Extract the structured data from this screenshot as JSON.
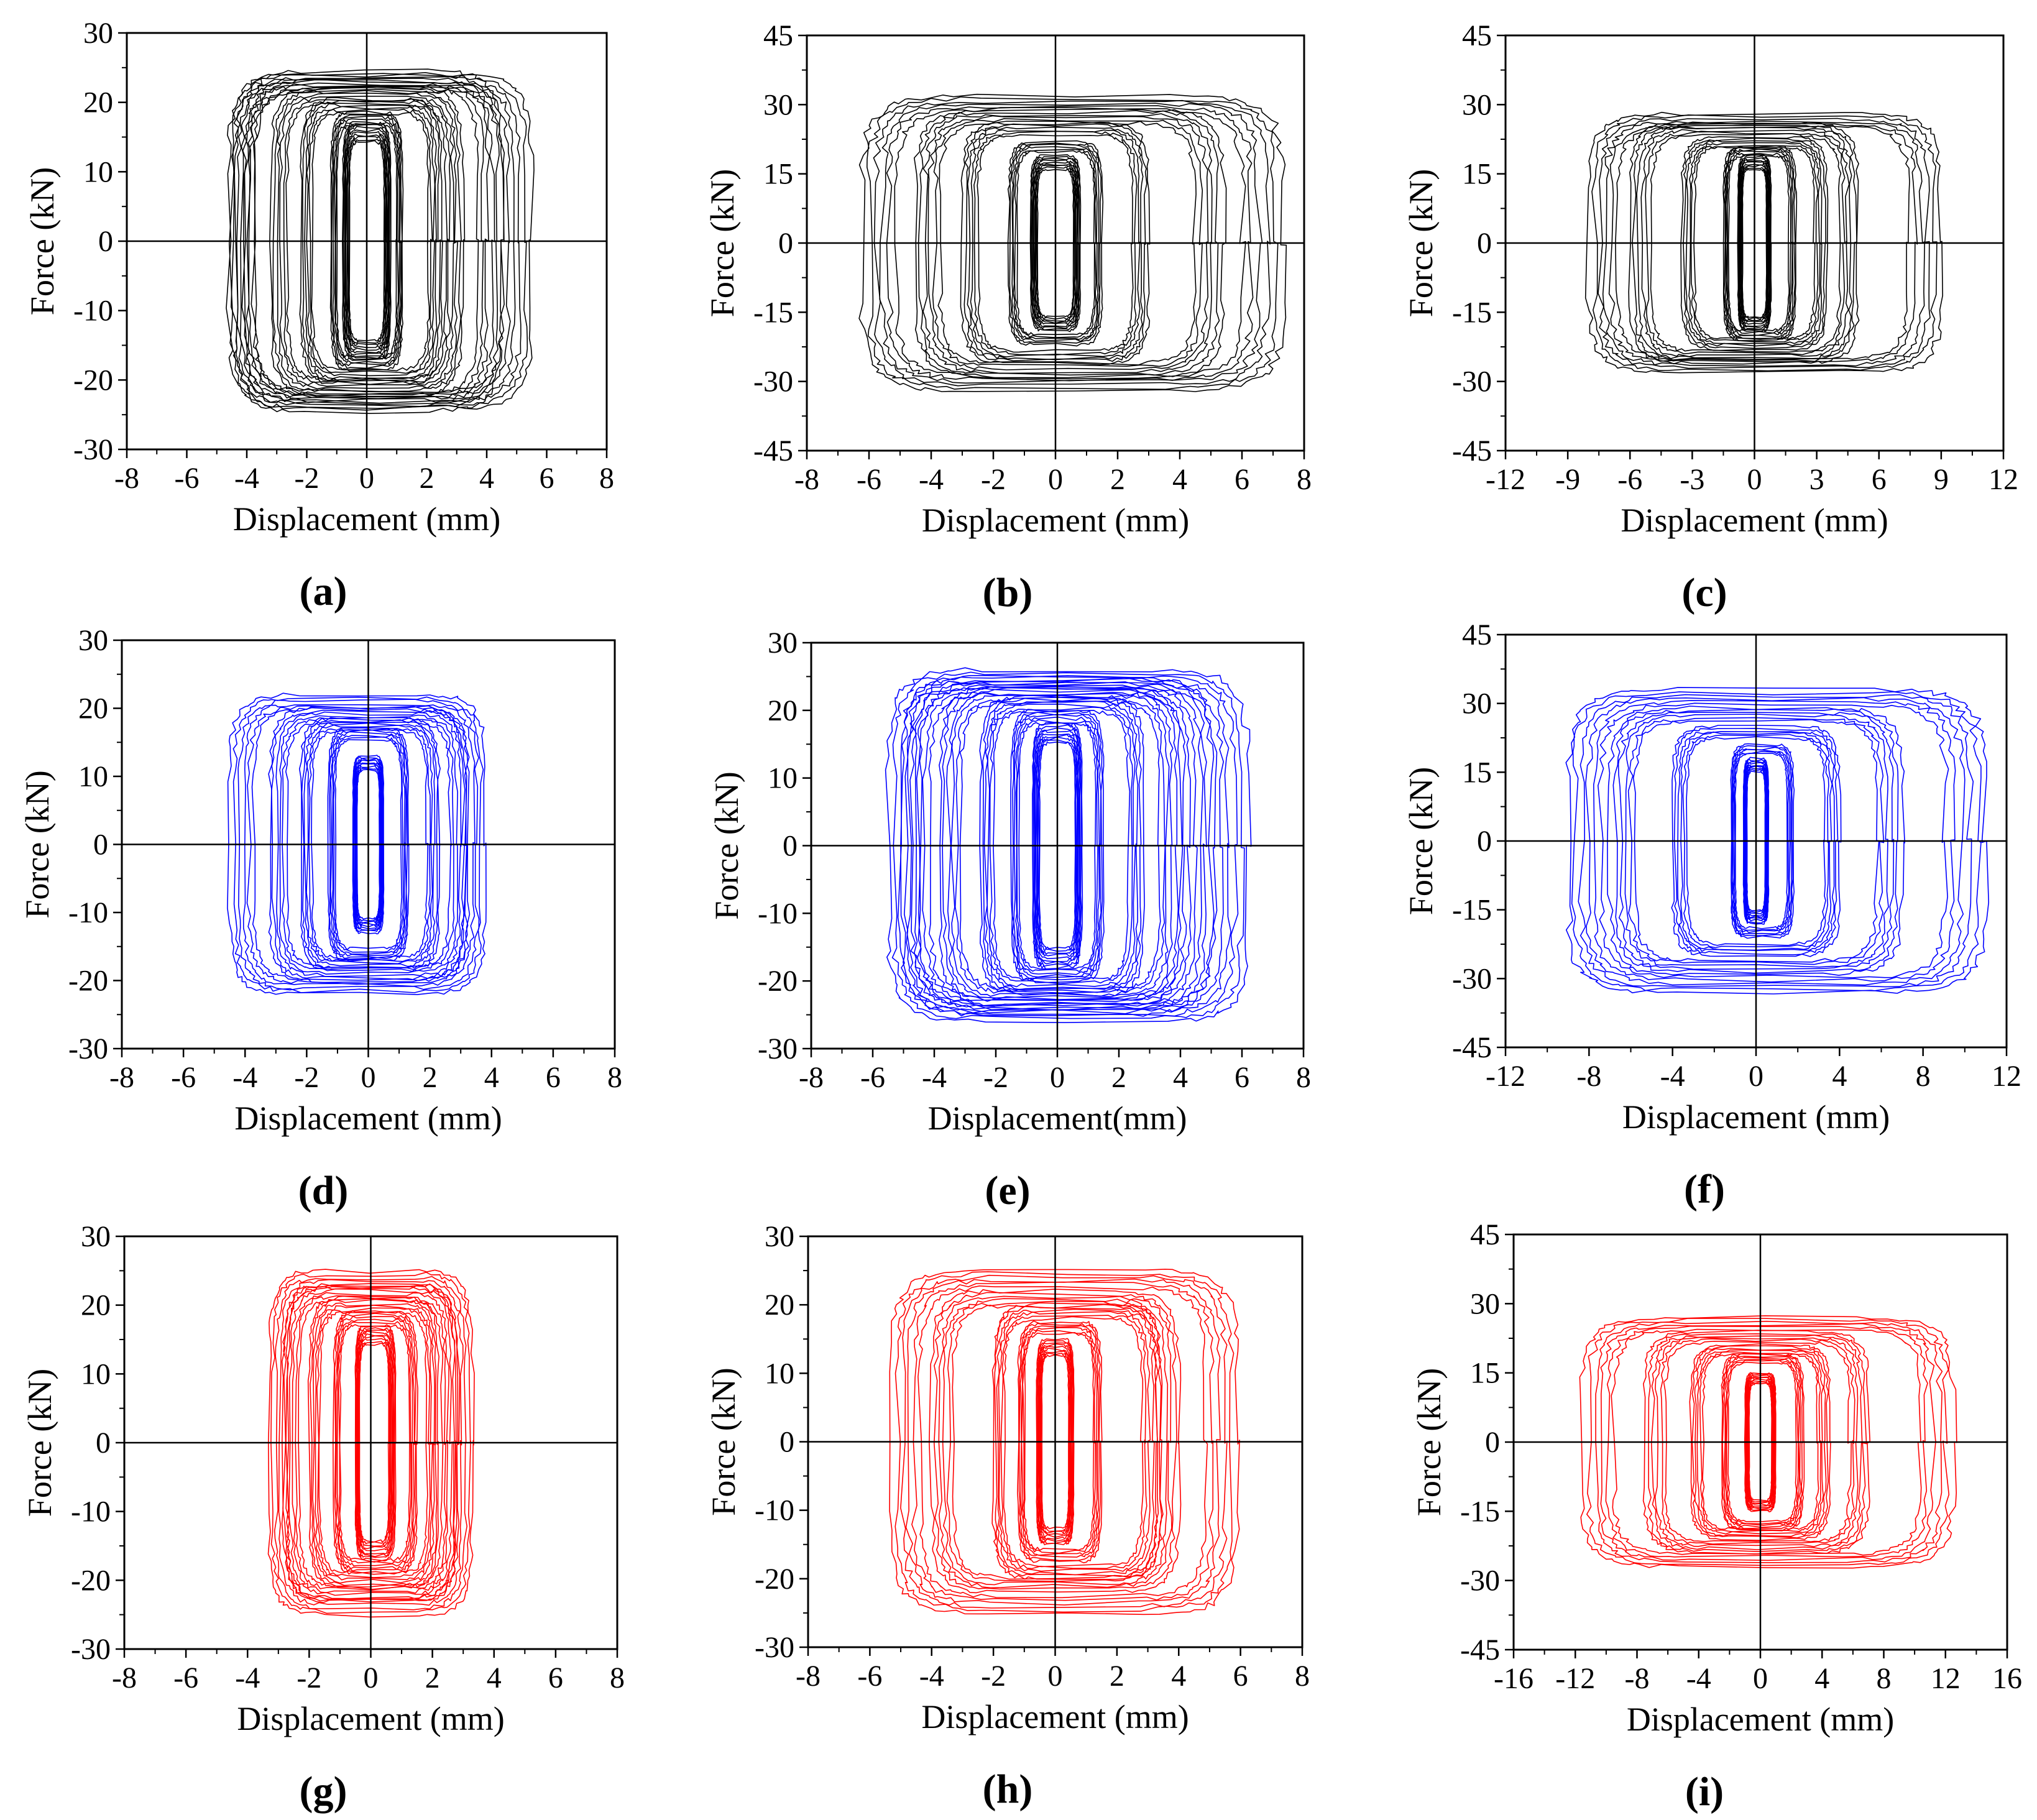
{
  "figure": {
    "caption_letters": [
      "(a)",
      "(b)",
      "(c)",
      "(d)",
      "(e)",
      "(f)",
      "(g)",
      "(h)",
      "(i)"
    ]
  },
  "chart_data": [
    {
      "id": "a",
      "type": "line",
      "caption": "(a)",
      "color": "#000000",
      "xlabel": "Displacement (mm)",
      "ylabel": "Force (kN)",
      "xlim": [
        -8,
        8
      ],
      "ylim": [
        -30,
        30
      ],
      "xticks": [
        -8,
        -6,
        -4,
        -2,
        0,
        2,
        4,
        6,
        8
      ],
      "yticks": [
        -30,
        -20,
        -10,
        0,
        10,
        20,
        30
      ],
      "series": [
        {
          "name": "hysteresis loops",
          "loops": [
            [
              -0.8,
              0.8,
              17
            ],
            [
              -1.2,
              1.2,
              18.5
            ],
            [
              -2.2,
              2.5,
              20.5
            ],
            [
              -3.2,
              3.2,
              22
            ],
            [
              -4.5,
              4.5,
              24.5
            ],
            [
              -4.6,
              5.5,
              24
            ]
          ]
        }
      ]
    },
    {
      "id": "b",
      "type": "line",
      "caption": "(b)",
      "color": "#000000",
      "xlabel": "Displacement (mm)",
      "ylabel": "Force (kN)",
      "xlim": [
        -8,
        8
      ],
      "ylim": [
        -45,
        45
      ],
      "xticks": [
        -8,
        -6,
        -4,
        -2,
        0,
        2,
        4,
        6,
        8
      ],
      "yticks": [
        -45,
        -30,
        -15,
        0,
        15,
        30,
        45
      ],
      "series": [
        {
          "name": "hysteresis loops",
          "loops": [
            [
              -0.8,
              0.8,
              19
            ],
            [
              -1.5,
              1.5,
              22
            ],
            [
              -3.0,
              3.0,
              26
            ],
            [
              -4.5,
              5.4,
              29
            ],
            [
              -6.2,
              7.3,
              32
            ]
          ]
        }
      ]
    },
    {
      "id": "c",
      "type": "line",
      "caption": "(c)",
      "color": "#000000",
      "xlabel": "Displacement (mm)",
      "ylabel": "Force (kN)",
      "xlim": [
        -12,
        12
      ],
      "ylim": [
        -45,
        45
      ],
      "xticks": [
        -12,
        -9,
        -6,
        -3,
        0,
        3,
        6,
        9,
        12
      ],
      "yticks": [
        -45,
        -30,
        -15,
        0,
        15,
        30,
        45
      ],
      "series": [
        {
          "name": "hysteresis loops",
          "loops": [
            [
              -0.8,
              0.8,
              19
            ],
            [
              -1.5,
              2.0,
              21
            ],
            [
              -3.5,
              3.5,
              23
            ],
            [
              -6.0,
              5.0,
              26
            ],
            [
              -8.0,
              9.0,
              28
            ]
          ]
        }
      ]
    },
    {
      "id": "d",
      "type": "line",
      "caption": "(d)",
      "color": "#0000ff",
      "xlabel": "Displacement (mm)",
      "ylabel": "Force (kN)",
      "xlim": [
        -8,
        8
      ],
      "ylim": [
        -30,
        30
      ],
      "xticks": [
        -8,
        -6,
        -4,
        -2,
        0,
        2,
        4,
        6,
        8
      ],
      "yticks": [
        -30,
        -20,
        -10,
        0,
        10,
        20,
        30
      ],
      "series": [
        {
          "name": "hysteresis loops",
          "loops": [
            [
              -0.5,
              0.5,
              13
            ],
            [
              -1.3,
              1.3,
              17
            ],
            [
              -2.2,
              2.3,
              18.5
            ],
            [
              -3.2,
              3.2,
              20
            ],
            [
              -4.5,
              3.8,
              22
            ]
          ]
        }
      ]
    },
    {
      "id": "e",
      "type": "line",
      "caption": "(e)",
      "color": "#0000ff",
      "xlabel": "Displacement(mm)",
      "ylabel": "Force (kN)",
      "xlim": [
        -8,
        8
      ],
      "ylim": [
        -30,
        30
      ],
      "xticks": [
        -8,
        -6,
        -4,
        -2,
        0,
        2,
        4,
        6,
        8
      ],
      "yticks": [
        -30,
        -20,
        -10,
        0,
        10,
        20,
        30
      ],
      "series": [
        {
          "name": "hysteresis loops",
          "loops": [
            [
              -0.8,
              0.8,
              18
            ],
            [
              -1.5,
              1.5,
              20
            ],
            [
              -2.5,
              2.8,
              22
            ],
            [
              -3.8,
              4.0,
              23.5
            ],
            [
              -5.0,
              5.0,
              25
            ],
            [
              -5.5,
              6.2,
              26
            ]
          ]
        }
      ]
    },
    {
      "id": "f",
      "type": "line",
      "caption": "(f)",
      "color": "#0000ff",
      "xlabel": "Displacement (mm)",
      "ylabel": "Force (kN)",
      "xlim": [
        -12,
        12
      ],
      "ylim": [
        -45,
        45
      ],
      "xticks": [
        -12,
        -8,
        -4,
        0,
        4,
        8,
        12
      ],
      "yticks": [
        -45,
        -30,
        -15,
        0,
        15,
        30,
        45
      ],
      "series": [
        {
          "name": "hysteresis loops",
          "loops": [
            [
              -0.6,
              0.6,
              18
            ],
            [
              -1.2,
              1.8,
              21
            ],
            [
              -4.0,
              4.0,
              25
            ],
            [
              -7.0,
              7.0,
              29
            ],
            [
              -9.0,
              11.0,
              33
            ]
          ]
        }
      ]
    },
    {
      "id": "g",
      "type": "line",
      "caption": "(g)",
      "color": "#ff0000",
      "xlabel": "Displacement (mm)",
      "ylabel": "Force (kN)",
      "xlim": [
        -8,
        8
      ],
      "ylim": [
        -30,
        30
      ],
      "xticks": [
        -8,
        -6,
        -4,
        -2,
        0,
        2,
        4,
        6,
        8
      ],
      "yticks": [
        -30,
        -20,
        -10,
        0,
        10,
        20,
        30
      ],
      "series": [
        {
          "name": "hysteresis loops",
          "loops": [
            [
              -0.5,
              0.8,
              17
            ],
            [
              -1.2,
              1.5,
              19
            ],
            [
              -2.0,
              2.2,
              21
            ],
            [
              -2.8,
              2.8,
              23
            ],
            [
              -3.3,
              3.3,
              25
            ]
          ]
        }
      ]
    },
    {
      "id": "h",
      "type": "line",
      "caption": "(h)",
      "color": "#ff0000",
      "xlabel": "Displacement (mm)",
      "ylabel": "Force (kN)",
      "xlim": [
        -8,
        8
      ],
      "ylim": [
        -30,
        30
      ],
      "xticks": [
        -8,
        -6,
        -4,
        -2,
        0,
        2,
        4,
        6,
        8
      ],
      "yticks": [
        -30,
        -20,
        -10,
        0,
        10,
        20,
        30
      ],
      "series": [
        {
          "name": "hysteresis loops",
          "loops": [
            [
              -0.6,
              0.6,
              15
            ],
            [
              -1.2,
              1.5,
              17.5
            ],
            [
              -2.0,
              3.4,
              20
            ],
            [
              -4.0,
              4.0,
              22
            ],
            [
              -5.3,
              5.9,
              25
            ]
          ]
        }
      ]
    },
    {
      "id": "i",
      "type": "line",
      "caption": "(i)",
      "color": "#ff0000",
      "xlabel": "Displacement (mm)",
      "ylabel": "Force (kN)",
      "xlim": [
        -16,
        16
      ],
      "ylim": [
        -45,
        45
      ],
      "xticks": [
        -16,
        -12,
        -8,
        -4,
        0,
        4,
        8,
        12,
        16
      ],
      "yticks": [
        -45,
        -30,
        -15,
        0,
        15,
        30,
        45
      ],
      "series": [
        {
          "name": "hysteresis loops",
          "loops": [
            [
              -1.0,
              1.0,
              15
            ],
            [
              -2.5,
              2.8,
              19
            ],
            [
              -4.5,
              4.5,
              21
            ],
            [
              -7.5,
              7.0,
              24
            ],
            [
              -11.5,
              12.5,
              27
            ]
          ]
        }
      ]
    }
  ]
}
